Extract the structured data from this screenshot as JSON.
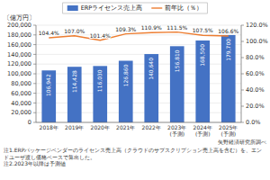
{
  "chart_data": {
    "type": "bar",
    "categories": [
      "2018年",
      "2019年",
      "2020年",
      "2021年",
      "2022年",
      "2023年\n(予測)",
      "2024年\n(予測)",
      "2025年\n(予測)"
    ],
    "series": [
      {
        "name": "ERPライセンス売上高",
        "type": "bar",
        "color": "#4472c4",
        "values": [
          106942,
          114428,
          116030,
          126860,
          140640,
          156810,
          168500,
          179700
        ],
        "value_labels": [
          "106,942",
          "114,428",
          "116,030",
          "126,860",
          "140,640",
          "156,810",
          "168,500",
          "179,700"
        ]
      },
      {
        "name": "前年比（％）",
        "type": "line",
        "color": "#ed7d31",
        "axis": "y2",
        "values": [
          104.4,
          107.0,
          101.4,
          109.3,
          110.9,
          111.5,
          107.5,
          106.6
        ],
        "value_labels": [
          "104.4%",
          "107.0%",
          "101.4%",
          "109.3%",
          "110.9%",
          "111.5%",
          "107.5%",
          "106.6%"
        ]
      }
    ],
    "ylabel": "〔億万円〕",
    "ylim": [
      0,
      200000
    ],
    "yticks": [
      0,
      {
        "value": 20000,
        "label": "20,000"
      },
      {
        "value": 40000,
        "label": "40,000"
      },
      {
        "value": 60000,
        "label": "60,000"
      },
      {
        "value": 80000,
        "label": "80,000"
      },
      {
        "value": 100000,
        "label": "100,000"
      },
      {
        "value": 120000,
        "label": "120,000"
      },
      {
        "value": 140000,
        "label": "140,000"
      },
      {
        "value": 160000,
        "label": "160,000"
      },
      {
        "value": 180000,
        "label": "180,000"
      },
      {
        "value": 200000,
        "label": "200,000"
      }
    ],
    "y2lim": [
      0,
      120
    ],
    "y2ticks": [
      {
        "value": 0,
        "label": "0.0%"
      },
      {
        "value": 20,
        "label": "20.0%"
      },
      {
        "value": 40,
        "label": "40.0%"
      },
      {
        "value": 60,
        "label": "60.0%"
      },
      {
        "value": 80,
        "label": "80.0%"
      },
      {
        "value": 100,
        "label": "100.0%"
      },
      {
        "value": 120,
        "label": "120.0%"
      }
    ],
    "grid": true,
    "legend": "top",
    "data_labels": true,
    "annotations": [
      "矢野経済研究所調べ",
      "注1.ERPパッケージベンダーのライセンス売上高（クラウドのサブスクリプション売上高を含む）を、エンドユーザ渡し価格ベースで算出した。",
      "注2.2023年以降は予測値"
    ]
  }
}
